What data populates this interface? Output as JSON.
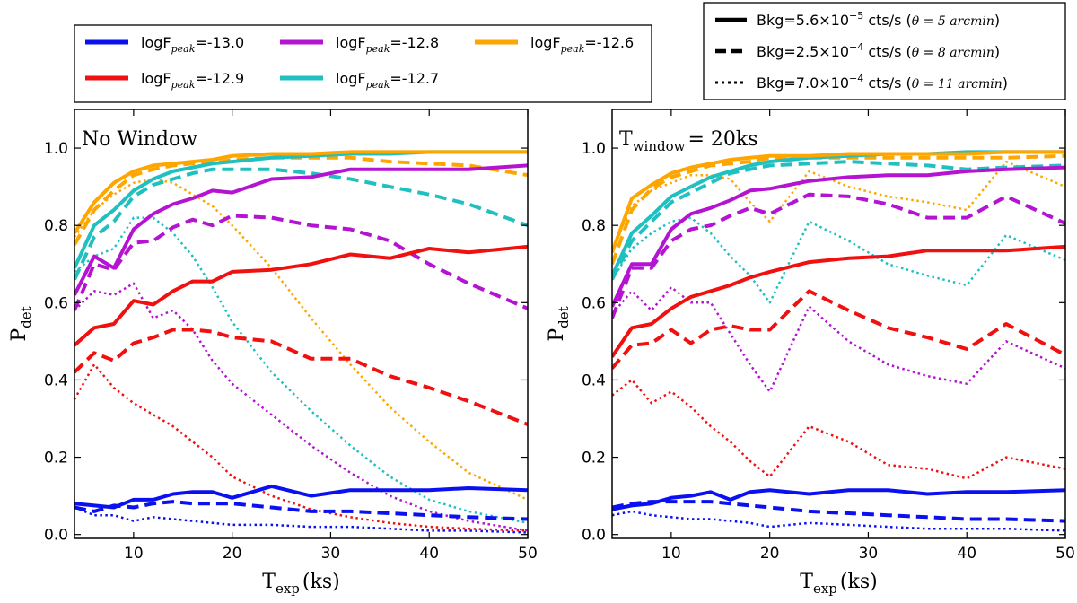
{
  "chart_data": [
    {
      "type": "line",
      "panel_label": "No Window",
      "xlabel_main": "T",
      "xlabel_sub": "exp",
      "xlabel_units": "(ks)",
      "ylabel_main": "P",
      "ylabel_sub": "det",
      "xlim": [
        4,
        50
      ],
      "ylim": [
        -0.01,
        1.1
      ],
      "xticks": [
        10,
        20,
        30,
        40,
        50
      ],
      "xtick_labels": [
        "10",
        "20",
        "30",
        "40",
        "50"
      ],
      "yticks": [
        0.0,
        0.2,
        0.4,
        0.6,
        0.8,
        1.0
      ],
      "ytick_labels": [
        "0.0",
        "0.2",
        "0.4",
        "0.6",
        "0.8",
        "1.0"
      ],
      "x": [
        4,
        6,
        8,
        10,
        12,
        14,
        16,
        18,
        20,
        24,
        28,
        32,
        36,
        40,
        44,
        50
      ],
      "series": [
        {
          "name": "logF=-13.0 solid",
          "color": "#0a10f0",
          "style": "solid",
          "values": [
            0.08,
            0.075,
            0.07,
            0.09,
            0.09,
            0.105,
            0.11,
            0.11,
            0.095,
            0.125,
            0.1,
            0.115,
            0.115,
            0.115,
            0.12,
            0.115
          ]
        },
        {
          "name": "logF=-13.0 dashed",
          "color": "#0a10f0",
          "style": "dashed",
          "values": [
            0.07,
            0.06,
            0.075,
            0.07,
            0.08,
            0.085,
            0.08,
            0.08,
            0.08,
            0.07,
            0.06,
            0.06,
            0.055,
            0.05,
            0.045,
            0.04
          ]
        },
        {
          "name": "logF=-13.0 dotted",
          "color": "#0a10f0",
          "style": "dotted",
          "values": [
            0.07,
            0.05,
            0.05,
            0.035,
            0.045,
            0.04,
            0.035,
            0.03,
            0.025,
            0.025,
            0.02,
            0.02,
            0.015,
            0.01,
            0.01,
            0.005
          ]
        },
        {
          "name": "logF=-12.9 solid",
          "color": "#f01010",
          "style": "solid",
          "values": [
            0.49,
            0.535,
            0.545,
            0.605,
            0.595,
            0.63,
            0.655,
            0.655,
            0.68,
            0.685,
            0.7,
            0.725,
            0.715,
            0.74,
            0.73,
            0.745
          ]
        },
        {
          "name": "logF=-12.9 dashed",
          "color": "#f01010",
          "style": "dashed",
          "values": [
            0.42,
            0.47,
            0.45,
            0.495,
            0.51,
            0.53,
            0.53,
            0.525,
            0.51,
            0.5,
            0.455,
            0.455,
            0.41,
            0.38,
            0.345,
            0.285
          ]
        },
        {
          "name": "logF=-12.9 dotted",
          "color": "#f01010",
          "style": "dotted",
          "values": [
            0.35,
            0.44,
            0.38,
            0.34,
            0.31,
            0.28,
            0.24,
            0.2,
            0.15,
            0.1,
            0.065,
            0.045,
            0.03,
            0.02,
            0.015,
            0.01
          ]
        },
        {
          "name": "logF=-12.8 solid",
          "color": "#b414d2",
          "style": "solid",
          "values": [
            0.62,
            0.72,
            0.69,
            0.79,
            0.83,
            0.855,
            0.87,
            0.89,
            0.885,
            0.92,
            0.925,
            0.945,
            0.945,
            0.945,
            0.945,
            0.955
          ]
        },
        {
          "name": "logF=-12.8 dashed",
          "color": "#b414d2",
          "style": "dashed",
          "values": [
            0.58,
            0.7,
            0.685,
            0.755,
            0.76,
            0.795,
            0.815,
            0.8,
            0.825,
            0.82,
            0.8,
            0.79,
            0.76,
            0.7,
            0.65,
            0.585
          ]
        },
        {
          "name": "logF=-12.8 dotted",
          "color": "#b414d2",
          "style": "dotted",
          "values": [
            0.58,
            0.63,
            0.62,
            0.65,
            0.56,
            0.58,
            0.53,
            0.45,
            0.39,
            0.31,
            0.23,
            0.16,
            0.1,
            0.06,
            0.035,
            0.01
          ]
        },
        {
          "name": "logF=-12.7 solid",
          "color": "#20c0c0",
          "style": "solid",
          "values": [
            0.69,
            0.8,
            0.84,
            0.89,
            0.92,
            0.94,
            0.95,
            0.96,
            0.965,
            0.975,
            0.98,
            0.985,
            0.985,
            0.99,
            0.99,
            0.99
          ]
        },
        {
          "name": "logF=-12.7 dashed",
          "color": "#20c0c0",
          "style": "dashed",
          "values": [
            0.66,
            0.77,
            0.81,
            0.875,
            0.905,
            0.92,
            0.935,
            0.945,
            0.945,
            0.945,
            0.935,
            0.92,
            0.9,
            0.88,
            0.855,
            0.8
          ]
        },
        {
          "name": "logF=-12.7 dotted",
          "color": "#20c0c0",
          "style": "dotted",
          "values": [
            0.68,
            0.72,
            0.74,
            0.82,
            0.82,
            0.78,
            0.72,
            0.64,
            0.55,
            0.42,
            0.32,
            0.23,
            0.15,
            0.09,
            0.06,
            0.03
          ]
        },
        {
          "name": "logF=-12.6 solid",
          "color": "#ffa500",
          "style": "solid",
          "values": [
            0.78,
            0.86,
            0.91,
            0.94,
            0.955,
            0.96,
            0.965,
            0.97,
            0.98,
            0.985,
            0.985,
            0.99,
            0.99,
            0.99,
            0.99,
            0.99
          ]
        },
        {
          "name": "logF=-12.6 dashed",
          "color": "#ffa500",
          "style": "dashed",
          "values": [
            0.75,
            0.84,
            0.89,
            0.93,
            0.945,
            0.955,
            0.96,
            0.96,
            0.97,
            0.975,
            0.975,
            0.975,
            0.965,
            0.96,
            0.955,
            0.93
          ]
        },
        {
          "name": "logF=-12.6 dotted",
          "color": "#ffa500",
          "style": "dotted",
          "values": [
            0.77,
            0.84,
            0.88,
            0.91,
            0.92,
            0.91,
            0.88,
            0.85,
            0.8,
            0.69,
            0.56,
            0.44,
            0.33,
            0.24,
            0.16,
            0.09
          ]
        }
      ]
    },
    {
      "type": "line",
      "panel_label_main": "T",
      "panel_label_sub": "window",
      "panel_label_rest": "= 20ks",
      "xlabel_main": "T",
      "xlabel_sub": "exp",
      "xlabel_units": "(ks)",
      "ylabel_main": "P",
      "ylabel_sub": "det",
      "xlim": [
        4,
        50
      ],
      "ylim": [
        -0.01,
        1.1
      ],
      "xticks": [
        10,
        20,
        30,
        40,
        50
      ],
      "xtick_labels": [
        "10",
        "20",
        "30",
        "40",
        "50"
      ],
      "yticks": [
        0.0,
        0.2,
        0.4,
        0.6,
        0.8,
        1.0
      ],
      "ytick_labels": [
        "0.0",
        "0.2",
        "0.4",
        "0.6",
        "0.8",
        "1.0"
      ],
      "x": [
        4,
        6,
        8,
        10,
        12,
        14,
        16,
        18,
        20,
        24,
        28,
        32,
        36,
        40,
        44,
        50
      ],
      "series": [
        {
          "name": "logF=-13.0 solid",
          "color": "#0a10f0",
          "style": "solid",
          "values": [
            0.065,
            0.075,
            0.08,
            0.095,
            0.1,
            0.11,
            0.09,
            0.11,
            0.115,
            0.105,
            0.115,
            0.115,
            0.105,
            0.11,
            0.11,
            0.115
          ]
        },
        {
          "name": "logF=-13.0 dashed",
          "color": "#0a10f0",
          "style": "dashed",
          "values": [
            0.07,
            0.08,
            0.085,
            0.085,
            0.085,
            0.085,
            0.08,
            0.075,
            0.07,
            0.06,
            0.055,
            0.05,
            0.045,
            0.04,
            0.04,
            0.035
          ]
        },
        {
          "name": "logF=-13.0 dotted",
          "color": "#0a10f0",
          "style": "dotted",
          "values": [
            0.05,
            0.06,
            0.05,
            0.045,
            0.04,
            0.04,
            0.035,
            0.03,
            0.02,
            0.03,
            0.025,
            0.02,
            0.015,
            0.015,
            0.015,
            0.01
          ]
        },
        {
          "name": "logF=-12.9 solid",
          "color": "#f01010",
          "style": "solid",
          "values": [
            0.46,
            0.535,
            0.545,
            0.585,
            0.615,
            0.63,
            0.645,
            0.665,
            0.68,
            0.705,
            0.715,
            0.72,
            0.735,
            0.735,
            0.735,
            0.745
          ]
        },
        {
          "name": "logF=-12.9 dashed",
          "color": "#f01010",
          "style": "dashed",
          "values": [
            0.43,
            0.49,
            0.495,
            0.53,
            0.495,
            0.53,
            0.54,
            0.53,
            0.53,
            0.63,
            0.58,
            0.535,
            0.51,
            0.48,
            0.545,
            0.465
          ]
        },
        {
          "name": "logF=-12.9 dotted",
          "color": "#f01010",
          "style": "dotted",
          "values": [
            0.36,
            0.4,
            0.34,
            0.37,
            0.33,
            0.28,
            0.24,
            0.19,
            0.15,
            0.28,
            0.24,
            0.18,
            0.17,
            0.145,
            0.2,
            0.17
          ]
        },
        {
          "name": "logF=-12.8 solid",
          "color": "#b414d2",
          "style": "solid",
          "values": [
            0.59,
            0.7,
            0.7,
            0.79,
            0.83,
            0.845,
            0.865,
            0.89,
            0.895,
            0.915,
            0.925,
            0.93,
            0.93,
            0.94,
            0.945,
            0.95
          ]
        },
        {
          "name": "logF=-12.8 dashed",
          "color": "#b414d2",
          "style": "dashed",
          "values": [
            0.56,
            0.69,
            0.69,
            0.76,
            0.79,
            0.8,
            0.825,
            0.845,
            0.83,
            0.88,
            0.875,
            0.855,
            0.82,
            0.82,
            0.875,
            0.805
          ]
        },
        {
          "name": "logF=-12.8 dotted",
          "color": "#b414d2",
          "style": "dotted",
          "values": [
            0.57,
            0.63,
            0.58,
            0.64,
            0.6,
            0.6,
            0.52,
            0.44,
            0.37,
            0.59,
            0.5,
            0.44,
            0.41,
            0.39,
            0.5,
            0.43
          ]
        },
        {
          "name": "logF=-12.7 solid",
          "color": "#20c0c0",
          "style": "solid",
          "values": [
            0.67,
            0.78,
            0.825,
            0.875,
            0.9,
            0.925,
            0.94,
            0.955,
            0.965,
            0.975,
            0.98,
            0.985,
            0.985,
            0.99,
            0.99,
            0.99
          ]
        },
        {
          "name": "logF=-12.7 dashed",
          "color": "#20c0c0",
          "style": "dashed",
          "values": [
            0.66,
            0.76,
            0.81,
            0.86,
            0.885,
            0.91,
            0.935,
            0.945,
            0.955,
            0.96,
            0.965,
            0.96,
            0.955,
            0.945,
            0.95,
            0.955
          ]
        },
        {
          "name": "logF=-12.7 dotted",
          "color": "#20c0c0",
          "style": "dotted",
          "values": [
            0.66,
            0.74,
            0.78,
            0.81,
            0.82,
            0.78,
            0.72,
            0.67,
            0.6,
            0.81,
            0.76,
            0.7,
            0.67,
            0.645,
            0.775,
            0.71
          ]
        },
        {
          "name": "logF=-12.6 solid",
          "color": "#ffa500",
          "style": "solid",
          "values": [
            0.73,
            0.87,
            0.905,
            0.935,
            0.95,
            0.96,
            0.97,
            0.975,
            0.98,
            0.98,
            0.985,
            0.985,
            0.985,
            0.985,
            0.99,
            0.99
          ]
        },
        {
          "name": "logF=-12.6 dashed",
          "color": "#ffa500",
          "style": "dashed",
          "values": [
            0.7,
            0.84,
            0.895,
            0.925,
            0.94,
            0.955,
            0.96,
            0.965,
            0.975,
            0.975,
            0.975,
            0.975,
            0.975,
            0.975,
            0.975,
            0.98
          ]
        },
        {
          "name": "logF=-12.6 dotted",
          "color": "#ffa500",
          "style": "dotted",
          "values": [
            0.74,
            0.85,
            0.89,
            0.91,
            0.93,
            0.93,
            0.92,
            0.86,
            0.81,
            0.94,
            0.9,
            0.875,
            0.86,
            0.84,
            0.965,
            0.9
          ]
        }
      ]
    }
  ],
  "legend_flux": [
    {
      "text_pre": "logF",
      "text_sub": "peak",
      "text_post": "=-13.0",
      "color": "#0a10f0"
    },
    {
      "text_pre": "logF",
      "text_sub": "peak",
      "text_post": "=-12.9",
      "color": "#f01010"
    },
    {
      "text_pre": "logF",
      "text_sub": "peak",
      "text_post": "=-12.8",
      "color": "#b414d2"
    },
    {
      "text_pre": "logF",
      "text_sub": "peak",
      "text_post": "=-12.7",
      "color": "#20c0c0"
    },
    {
      "text_pre": "logF",
      "text_sub": "peak",
      "text_post": "=-12.6",
      "color": "#ffa500"
    }
  ],
  "legend_bkg": [
    {
      "style": "solid",
      "text_pre": "Bkg=5.6×10",
      "text_exp": "−5",
      "text_post": " cts/s (",
      "theta": "θ = 5 arcmin",
      "text_end": ")"
    },
    {
      "style": "dashed",
      "text_pre": "Bkg=2.5×10",
      "text_exp": "−4",
      "text_post": " cts/s (",
      "theta": "θ = 8 arcmin",
      "text_end": ")"
    },
    {
      "style": "dotted",
      "text_pre": "Bkg=7.0×10",
      "text_exp": "−4",
      "text_post": " cts/s (",
      "theta": "θ = 11 arcmin",
      "text_end": ")"
    }
  ]
}
